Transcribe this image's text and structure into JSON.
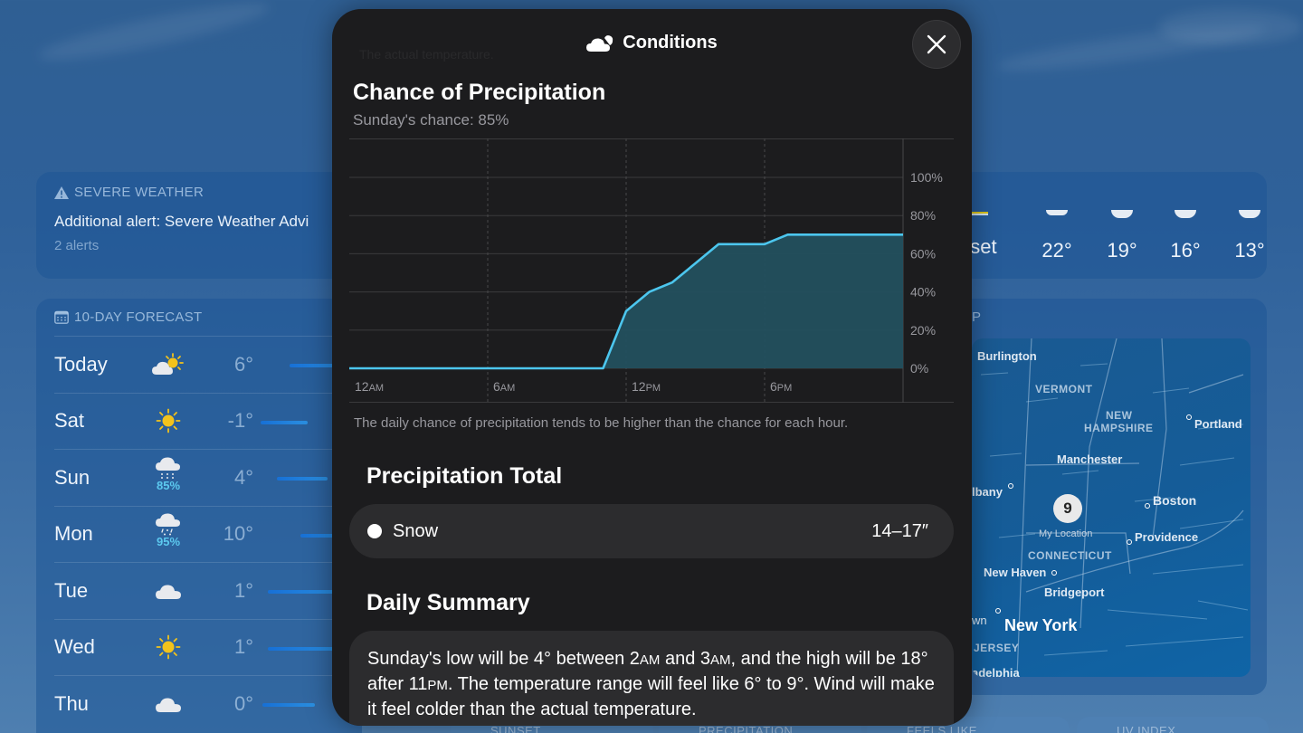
{
  "background": {
    "severe_weather": {
      "header": "SEVERE WEATHER",
      "alert_text": "Additional alert: Severe Weather Advi",
      "count": "2 alerts"
    },
    "ten_day_forecast": {
      "header": "10-DAY FORECAST",
      "rows": [
        {
          "day": "Today",
          "icon": "partly-sunny-icon",
          "precip": "",
          "low": "6°"
        },
        {
          "day": "Sat",
          "icon": "sun-icon",
          "precip": "",
          "low": "-1°"
        },
        {
          "day": "Sun",
          "icon": "snow-cloud-icon",
          "precip": "85%",
          "low": "4°"
        },
        {
          "day": "Mon",
          "icon": "sleet-cloud-icon",
          "precip": "95%",
          "low": "10°"
        },
        {
          "day": "Tue",
          "icon": "cloud-icon",
          "precip": "",
          "low": "1°"
        },
        {
          "day": "Wed",
          "icon": "sun-icon",
          "precip": "",
          "low": "1°"
        },
        {
          "day": "Thu",
          "icon": "cloud-icon",
          "precip": "",
          "low": "0°"
        }
      ]
    },
    "hourly": {
      "partial_label": "nset",
      "temps": [
        "22°",
        "19°",
        "16°",
        "13°"
      ]
    },
    "map": {
      "header_partial": "P",
      "location_badge": "9",
      "location_label": "My Location",
      "labels": {
        "burlington": "Burlington",
        "vermont": "VERMONT",
        "new": "NEW",
        "hampshire": "HAMPSHIRE",
        "portland": "Portland",
        "manchester": "Manchester",
        "albany": "lbany",
        "boston": "Boston",
        "providence": "Providence",
        "connecticut": "CONNECTICUT",
        "new_haven": "New Haven",
        "bridgeport": "Bridgeport",
        "wn": "wn",
        "new_york": "New York",
        "jersey": "JERSEY",
        "philadelphia": "adelphia"
      }
    },
    "bottom_tiles": [
      "SUNSET",
      "PRECIPITATION",
      "FEELS LIKE",
      "UV INDEX"
    ]
  },
  "modal": {
    "title": "Conditions",
    "title_icon": "cloud-icon",
    "ghost_text": "The actual temperature.",
    "close_icon": "close-icon",
    "chance": {
      "title": "Chance of Precipitation",
      "subtitle": "Sunday's chance: 85%",
      "footnote": "The daily chance of precipitation tends to be higher than the chance for each hour."
    },
    "precip_total": {
      "title": "Precipitation Total",
      "type": "Snow",
      "amount": "14–17″"
    },
    "daily_summary": {
      "title": "Daily Summary",
      "text_parts": [
        "Sunday's low will be 4° between 2",
        "AM",
        " and 3",
        "AM",
        ", and the high will be 18° after 11",
        "PM",
        ". The temperature range will feel like 6° to 9°. Wind will make it feel colder than the actual temperature."
      ]
    }
  },
  "chart_data": {
    "type": "area",
    "title": "Chance of Precipitation",
    "subtitle": "Sunday's chance: 85%",
    "xlabel": "",
    "ylabel": "",
    "x_ticks": [
      "12AM",
      "6AM",
      "12PM",
      "6PM"
    ],
    "y_ticks": [
      "0%",
      "20%",
      "40%",
      "60%",
      "80%",
      "100%"
    ],
    "ylim": [
      0,
      100
    ],
    "xlim_hours": [
      0,
      24
    ],
    "grid": true,
    "series": [
      {
        "name": "Hourly chance of precipitation",
        "color": "#4cc6ee",
        "fill": "#23505e",
        "x_hours": [
          0,
          1,
          2,
          3,
          4,
          5,
          6,
          7,
          8,
          9,
          10,
          11,
          12,
          13,
          14,
          15,
          16,
          17,
          18,
          19,
          20,
          21,
          22,
          23,
          24
        ],
        "values": [
          0,
          0,
          0,
          0,
          0,
          0,
          0,
          0,
          0,
          0,
          0,
          0,
          30,
          40,
          45,
          55,
          65,
          65,
          65,
          70,
          70,
          70,
          70,
          70,
          70
        ]
      }
    ]
  }
}
